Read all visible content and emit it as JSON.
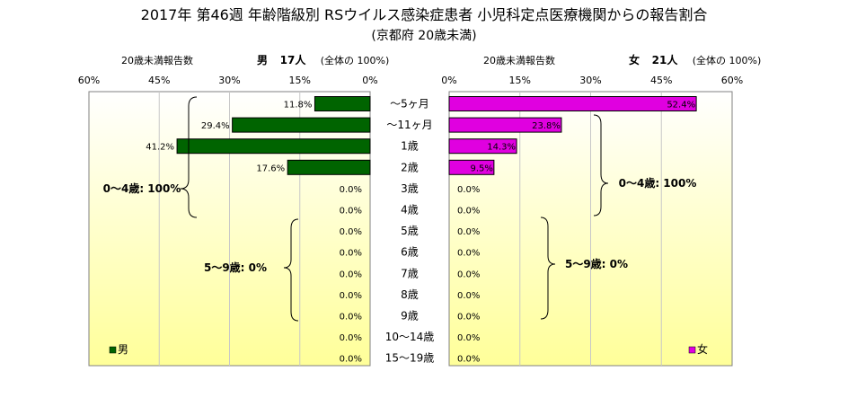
{
  "title": "2017年 第46週 年齢階級別 RSウイルス感染症患者 小児科定点医療機関からの報告割合",
  "subtitle": "(京都府 20歳未満)",
  "left_header": {
    "label": "20歳未満報告数",
    "sex": "男",
    "count": "17人",
    "note": "(全体の  100%)"
  },
  "right_header": {
    "label": "20歳未満報告数",
    "sex": "女",
    "count": "21人",
    "note": "(全体の  100%)"
  },
  "brace_labels": {
    "male_0_4": "0～4歳: 100%",
    "male_5_9": "5～9歳: 0%",
    "female_0_4": "0～4歳: 100%",
    "female_5_9": "5～9歳: 0%"
  },
  "legend": {
    "male": "男",
    "female": "女"
  },
  "colors": {
    "male": "#006400",
    "female": "#e000e0",
    "plot_bg_top": "#ffffff",
    "plot_bg_bottom": "#ffff99"
  },
  "chart_data": {
    "type": "bar",
    "orientation": "horizontal",
    "layout": "population-pyramid",
    "categories": [
      "～5ヶ月",
      "～11ヶ月",
      "1歳",
      "2歳",
      "3歳",
      "4歳",
      "5歳",
      "6歳",
      "7歳",
      "8歳",
      "9歳",
      "10～14歳",
      "15～19歳"
    ],
    "series": [
      {
        "name": "男",
        "values": [
          11.8,
          29.4,
          41.2,
          17.6,
          0.0,
          0.0,
          0.0,
          0.0,
          0.0,
          0.0,
          0.0,
          0.0,
          0.0
        ]
      },
      {
        "name": "女",
        "values": [
          52.4,
          23.8,
          14.3,
          9.5,
          0.0,
          0.0,
          0.0,
          0.0,
          0.0,
          0.0,
          0.0,
          0.0,
          0.0
        ]
      }
    ],
    "value_labels_male": [
      "11.8%",
      "29.4%",
      "41.2%",
      "17.6%",
      "0.0%",
      "0.0%",
      "0.0%",
      "0.0%",
      "0.0%",
      "0.0%",
      "0.0%",
      "0.0%",
      "0.0%"
    ],
    "value_labels_female": [
      "52.4%",
      "23.8%",
      "14.3%",
      "9.5%",
      "0.0%",
      "0.0%",
      "0.0%",
      "0.0%",
      "0.0%",
      "0.0%",
      "0.0%",
      "0.0%",
      "0.0%"
    ],
    "male_ticks": [
      "60%",
      "45%",
      "30%",
      "15%",
      "0%"
    ],
    "female_ticks": [
      "0%",
      "15%",
      "30%",
      "45%",
      "60%"
    ],
    "xlim": [
      0,
      60
    ],
    "grid": true,
    "legend_position": "bottom"
  }
}
